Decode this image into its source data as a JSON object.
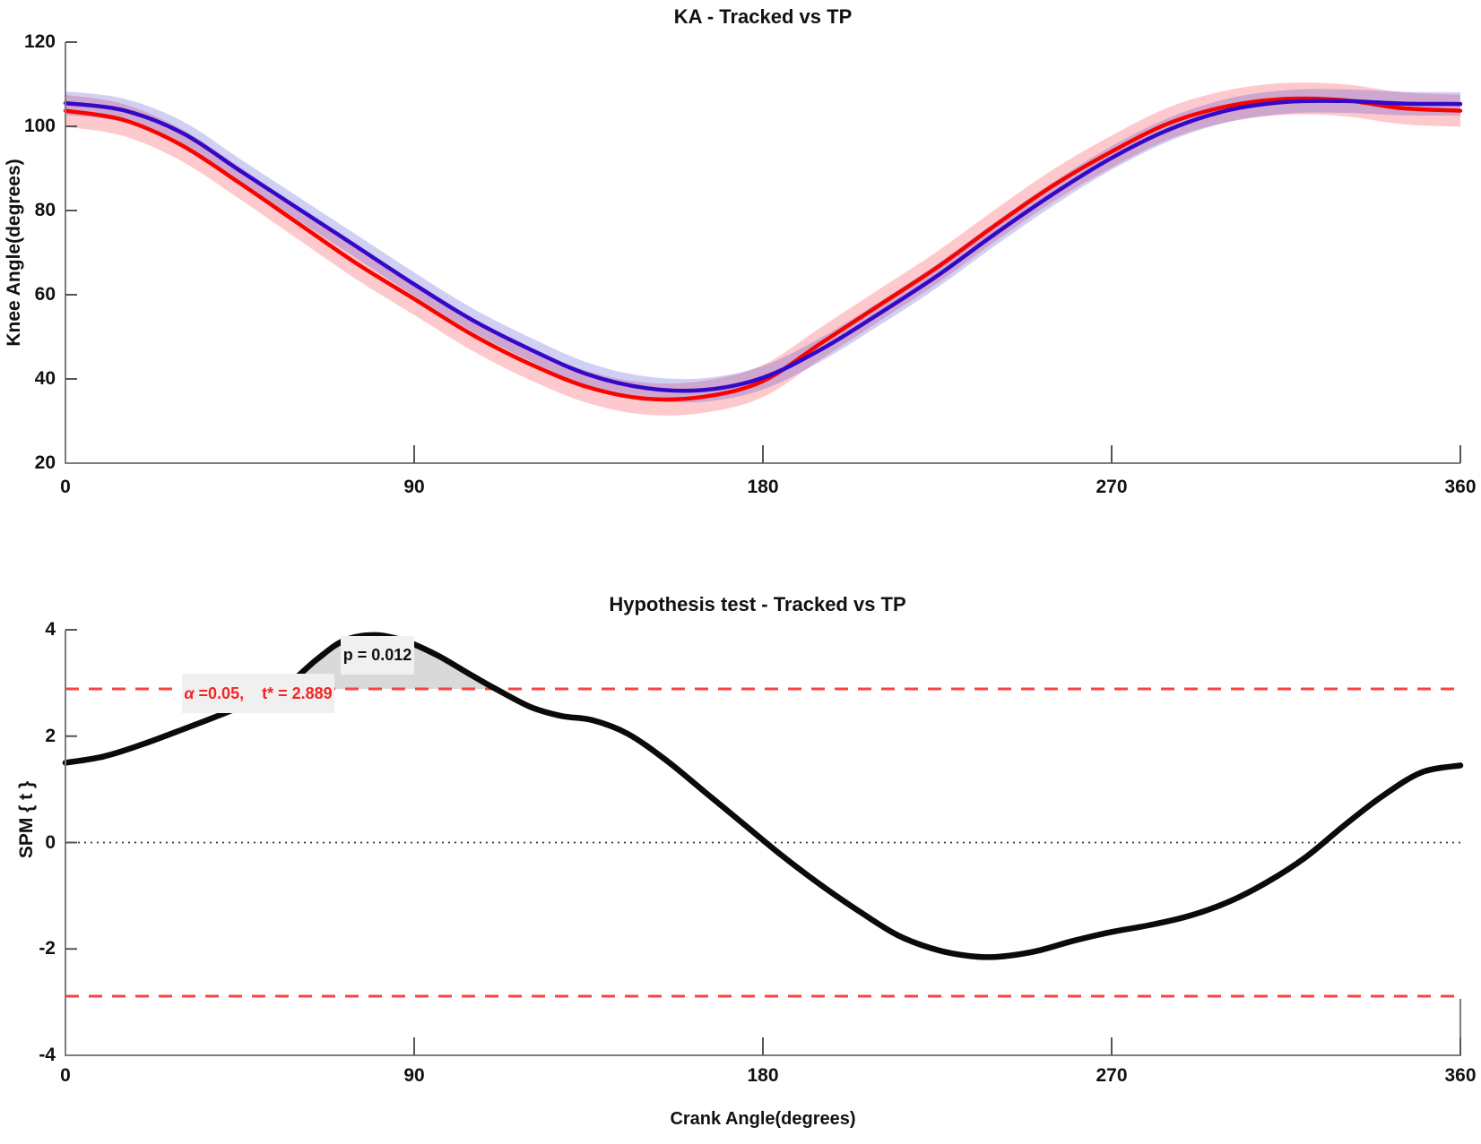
{
  "figure_background": "#ffffff",
  "chart_data": [
    {
      "type": "line",
      "title": "KA - Tracked vs TP",
      "xlabel": "",
      "ylabel": "Knee Angle(degrees)",
      "xlim": [
        0,
        360
      ],
      "ylim": [
        20,
        120
      ],
      "x_ticks": [
        0,
        90,
        180,
        270,
        360
      ],
      "y_ticks": [
        20,
        40,
        60,
        80,
        100,
        120
      ],
      "grid": false,
      "legend": "none",
      "x": [
        0,
        15,
        30,
        45,
        60,
        75,
        90,
        105,
        120,
        135,
        150,
        165,
        180,
        195,
        210,
        225,
        240,
        255,
        270,
        285,
        300,
        315,
        330,
        345,
        360
      ],
      "series": [
        {
          "name": "red-curve-mean",
          "color": "#f80400",
          "band_color": "rgba(250,60,75,0.28)",
          "band_halfwidth": 3.8,
          "values": [
            103.7,
            101.5,
            95.5,
            86.5,
            77,
            67.5,
            59,
            50.5,
            43.5,
            38,
            35.3,
            35.8,
            39.5,
            48.5,
            57.5,
            66.5,
            76.5,
            86,
            94,
            100.8,
            104.8,
            106.5,
            106.2,
            104.3,
            103.7
          ]
        },
        {
          "name": "blue-curve-mean",
          "color": "#3408c8",
          "band_color": "rgba(60,55,210,0.24)",
          "band_halfwidth": 2.8,
          "values": [
            105.5,
            103.8,
            98.5,
            89.5,
            80.5,
            71.5,
            62.5,
            54,
            47,
            41,
            37.8,
            37.4,
            40.3,
            47,
            55.5,
            64.5,
            74.5,
            84,
            92.5,
            99.3,
            103.8,
            105.8,
            106.0,
            105.4,
            105.3
          ]
        }
      ]
    },
    {
      "type": "line",
      "title": "Hypothesis test - Tracked vs TP",
      "xlabel": "Crank Angle(degrees)",
      "ylabel": "SPM { t }",
      "xlim": [
        0,
        360
      ],
      "ylim": [
        -4,
        4
      ],
      "x_ticks": [
        0,
        90,
        180,
        270,
        360
      ],
      "y_ticks": [
        -4,
        -2,
        0,
        2,
        4
      ],
      "grid": false,
      "threshold_t": 2.889,
      "threshold_lines": [
        2.889,
        -2.889
      ],
      "threshold_color": "#f94343",
      "zero_line": 0,
      "curve_color": "#0a0a0a",
      "x": [
        0,
        10,
        20,
        30,
        40,
        50,
        57,
        65,
        72,
        80,
        88,
        96,
        104,
        111,
        120,
        128,
        136,
        145,
        155,
        165,
        175,
        185,
        195,
        205,
        215,
        225,
        233,
        240,
        250,
        260,
        270,
        280,
        290,
        300,
        310,
        320,
        330,
        340,
        350,
        360
      ],
      "t_values": [
        1.5,
        1.62,
        1.85,
        2.12,
        2.4,
        2.7,
        2.95,
        3.45,
        3.8,
        3.9,
        3.78,
        3.52,
        3.18,
        2.89,
        2.55,
        2.38,
        2.3,
        2.05,
        1.55,
        0.95,
        0.35,
        -0.25,
        -0.8,
        -1.3,
        -1.75,
        -2.02,
        -2.13,
        -2.15,
        -2.05,
        -1.85,
        -1.68,
        -1.55,
        -1.38,
        -1.12,
        -0.75,
        -0.28,
        0.32,
        0.88,
        1.32,
        1.45
      ],
      "suprathreshold_cluster": {
        "x_start": 55,
        "x_end": 111,
        "fill_color": "#d9d9d9",
        "p_value": 0.012
      },
      "annotations": {
        "alpha_symbol": "α",
        "alpha_rest": " =0.05,    t* = 2.889",
        "p_label": "p = 0.012"
      }
    }
  ]
}
